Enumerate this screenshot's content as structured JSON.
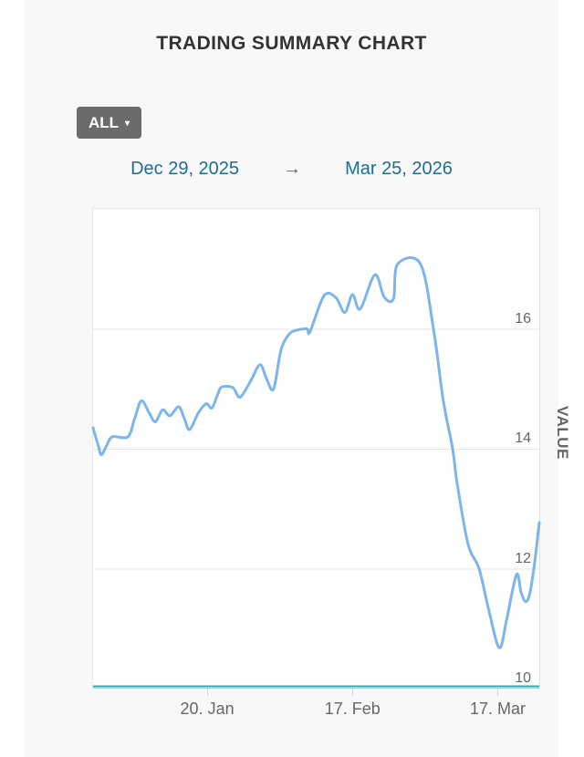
{
  "title": "TRADING SUMMARY CHART",
  "range_selector": {
    "button_label": "ALL",
    "caret": "▾"
  },
  "date_range": {
    "start": "Dec 29, 2025",
    "arrow": "→",
    "end": "Mar 25, 2026"
  },
  "chart_data": {
    "type": "line",
    "title": "TRADING SUMMARY CHART",
    "xlabel": "",
    "ylabel": "VALUE",
    "x_unit": "days since Dec 29, 2025",
    "xlim": [
      0,
      86
    ],
    "ylim": [
      10,
      18
    ],
    "grid": true,
    "yticks": [
      10,
      12,
      14,
      16
    ],
    "xticks": [
      {
        "day": 22,
        "label": "20. Jan"
      },
      {
        "day": 50,
        "label": "17. Feb"
      },
      {
        "day": 78,
        "label": "17. Mar"
      }
    ],
    "series": [
      {
        "name": "VALUE",
        "color": "#7cb5ec",
        "points": [
          [
            0,
            14.35
          ],
          [
            1,
            14.05
          ],
          [
            1.6,
            13.9
          ],
          [
            2.6,
            14.05
          ],
          [
            3.7,
            14.2
          ],
          [
            6.7,
            14.2
          ],
          [
            8,
            14.5
          ],
          [
            9.3,
            14.8
          ],
          [
            10.8,
            14.6
          ],
          [
            12,
            14.45
          ],
          [
            13.4,
            14.65
          ],
          [
            14.8,
            14.55
          ],
          [
            16.5,
            14.7
          ],
          [
            17.6,
            14.5
          ],
          [
            18.6,
            14.32
          ],
          [
            20.3,
            14.6
          ],
          [
            21.8,
            14.75
          ],
          [
            22.9,
            14.68
          ],
          [
            24,
            14.9
          ],
          [
            24.8,
            15.03
          ],
          [
            26.9,
            15.02
          ],
          [
            28,
            14.87
          ],
          [
            28.8,
            14.9
          ],
          [
            30.5,
            15.15
          ],
          [
            32.2,
            15.4
          ],
          [
            33.5,
            15.15
          ],
          [
            34.8,
            15.0
          ],
          [
            36.2,
            15.64
          ],
          [
            37.6,
            15.89
          ],
          [
            38.9,
            15.97
          ],
          [
            41.2,
            16.0
          ],
          [
            41.8,
            15.95
          ],
          [
            44.5,
            16.55
          ],
          [
            46.8,
            16.52
          ],
          [
            48.5,
            16.27
          ],
          [
            50,
            16.57
          ],
          [
            51.5,
            16.33
          ],
          [
            54.3,
            16.9
          ],
          [
            56.1,
            16.53
          ],
          [
            57.9,
            16.5
          ],
          [
            58.7,
            17.08
          ],
          [
            63.1,
            17.08
          ],
          [
            65.6,
            16.0
          ],
          [
            67.5,
            14.8
          ],
          [
            69.3,
            14.0
          ],
          [
            70.2,
            13.4
          ],
          [
            72.3,
            12.4
          ],
          [
            74.4,
            12.0
          ],
          [
            76.3,
            11.3
          ],
          [
            78.3,
            10.68
          ],
          [
            79.7,
            11.15
          ],
          [
            81.6,
            11.9
          ],
          [
            82.5,
            11.6
          ],
          [
            83.4,
            11.45
          ],
          [
            84.2,
            11.6
          ],
          [
            85.1,
            12.1
          ],
          [
            86,
            12.77
          ]
        ]
      }
    ]
  },
  "colors": {
    "page_bg": "#ffffff",
    "panel_bg": "#f8f8f8",
    "plot_bg": "#ffffff",
    "grid": "#e6e6e6",
    "x_axis_line": "#3aa3ae",
    "x_axis_line_light": "#9ed2d7",
    "tick_mark": "#ccd2de",
    "axis_label": "#666666",
    "title_text": "#333333",
    "button_bg": "#6b6b6b",
    "button_text": "#ffffff",
    "date_link": "#1c6e93",
    "series_line": "#7cb5ec"
  }
}
